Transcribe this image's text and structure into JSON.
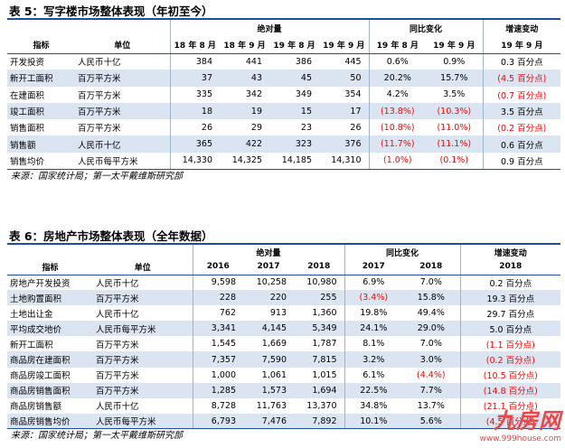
{
  "table1": {
    "title": "表 5：写字楼市场整体表现（年初至今）",
    "header": {
      "indicator": "指标",
      "unit": "单位",
      "group_abs": "绝对量",
      "group_yoy": "同比变化",
      "group_chg": "增速变动",
      "cols_abs": [
        "18 年 8 月",
        "18 年 9 月",
        "19 年 8 月",
        "19 年 9 月"
      ],
      "cols_yoy": [
        "19 年 8 月",
        "19 年 9 月"
      ],
      "cols_chg": [
        "19 年 9 月"
      ]
    },
    "rows": [
      {
        "name": "开发投资",
        "unit": "人民币十亿",
        "abs": [
          "384",
          "441",
          "386",
          "445"
        ],
        "yoy": [
          "0.6%",
          "0.9%"
        ],
        "chg": "0.3 百分点"
      },
      {
        "name": "新开工面积",
        "unit": "百万平方米",
        "abs": [
          "37",
          "43",
          "45",
          "50"
        ],
        "yoy": [
          "20.2%",
          "15.7%"
        ],
        "chg": "(4.5 百分点)"
      },
      {
        "name": "在建面积",
        "unit": "百万平方米",
        "abs": [
          "335",
          "342",
          "349",
          "354"
        ],
        "yoy": [
          "4.2%",
          "3.5%"
        ],
        "chg": "(0.7 百分点)"
      },
      {
        "name": "竣工面积",
        "unit": "百万平方米",
        "abs": [
          "18",
          "19",
          "15",
          "17"
        ],
        "yoy": [
          "(13.8%)",
          "(10.3%)"
        ],
        "chg": "3.5 百分点"
      },
      {
        "name": "销售面积",
        "unit": "百万平方米",
        "abs": [
          "26",
          "29",
          "23",
          "26"
        ],
        "yoy": [
          "(10.8%)",
          "(11.0%)"
        ],
        "chg": "(0.2 百分点)"
      },
      {
        "name": "销售额",
        "unit": "人民币十亿",
        "abs": [
          "365",
          "422",
          "323",
          "376"
        ],
        "yoy": [
          "(11.7%)",
          "(11.1%)"
        ],
        "chg": "0.6 百分点"
      },
      {
        "name": "销售均价",
        "unit": "人民币每平方米",
        "abs": [
          "14,330",
          "14,325",
          "14,185",
          "14,310"
        ],
        "yoy": [
          "(1.0%)",
          "(0.1%)"
        ],
        "chg": "0.9 百分点"
      }
    ],
    "source": "来源：国家统计局；第一太平戴维斯研究部"
  },
  "table2": {
    "title": "表 6：房地产市场整体表现（全年数据）",
    "header": {
      "indicator": "指标",
      "unit": "单位",
      "group_abs": "绝对量",
      "group_yoy": "同比变化",
      "group_chg": "增速变动",
      "cols_abs": [
        "2016",
        "2017",
        "2018"
      ],
      "cols_yoy": [
        "2017",
        "2018"
      ],
      "cols_chg": [
        "2018"
      ]
    },
    "rows": [
      {
        "name": "房地产开发投资",
        "unit": "人民币十亿",
        "abs": [
          "9,598",
          "10,258",
          "10,980"
        ],
        "yoy": [
          "6.9%",
          "7.0%"
        ],
        "chg": "0.2 百分点"
      },
      {
        "name": "土地购置面积",
        "unit": "百万平方米",
        "abs": [
          "228",
          "220",
          "255"
        ],
        "yoy": [
          "(3.4%)",
          "15.8%"
        ],
        "chg": "19.3 百分点"
      },
      {
        "name": "土地出让金",
        "unit": "人民币十亿",
        "abs": [
          "762",
          "913",
          "1,360"
        ],
        "yoy": [
          "19.8%",
          "49.4%"
        ],
        "chg": "29.7 百分点"
      },
      {
        "name": "平均成交地价",
        "unit": "人民币每平方米",
        "abs": [
          "3,341",
          "4,145",
          "5,349"
        ],
        "yoy": [
          "24.1%",
          "29.0%"
        ],
        "chg": "5.0 百分点"
      },
      {
        "name": "新开工面积",
        "unit": "百万平方米",
        "abs": [
          "1,545",
          "1,669",
          "1,787"
        ],
        "yoy": [
          "8.1%",
          "7.0%"
        ],
        "chg": "(1.1 百分点)"
      },
      {
        "name": "商品房在建面积",
        "unit": "百万平方米",
        "abs": [
          "7,357",
          "7,590",
          "7,815"
        ],
        "yoy": [
          "3.2%",
          "3.0%"
        ],
        "chg": "(0.2 百分点)"
      },
      {
        "name": "商品房竣工面积",
        "unit": "百万平方米",
        "abs": [
          "1,000",
          "1,061",
          "1,015"
        ],
        "yoy": [
          "6.1%",
          "(4.4%)"
        ],
        "chg": "(10.5 百分点)"
      },
      {
        "name": "商品房销售面积",
        "unit": "百万平方米",
        "abs": [
          "1,285",
          "1,573",
          "1,694"
        ],
        "yoy": [
          "22.5%",
          "7.7%"
        ],
        "chg": "(14.8 百分点)"
      },
      {
        "name": "商品房销售额",
        "unit": "人民币十亿",
        "abs": [
          "8,728",
          "11,763",
          "13,370"
        ],
        "yoy": [
          "34.8%",
          "13.7%"
        ],
        "chg": "(21.1 百分点)"
      },
      {
        "name": "商品房销售均价",
        "unit": "人民币每平方米",
        "abs": [
          "6,793",
          "7,476",
          "7,892"
        ],
        "yoy": [
          "10.1%",
          "5.6%"
        ],
        "chg": "(4.5 百分点)"
      }
    ],
    "source": "来源：国家统计局；第一太平戴维斯研究部"
  },
  "watermark": {
    "logo": "九房网",
    "url": "www.999house.com"
  },
  "colors": {
    "accent": "#1f4e99",
    "shade": "#dbe5f1",
    "negative": "#ff0000"
  }
}
